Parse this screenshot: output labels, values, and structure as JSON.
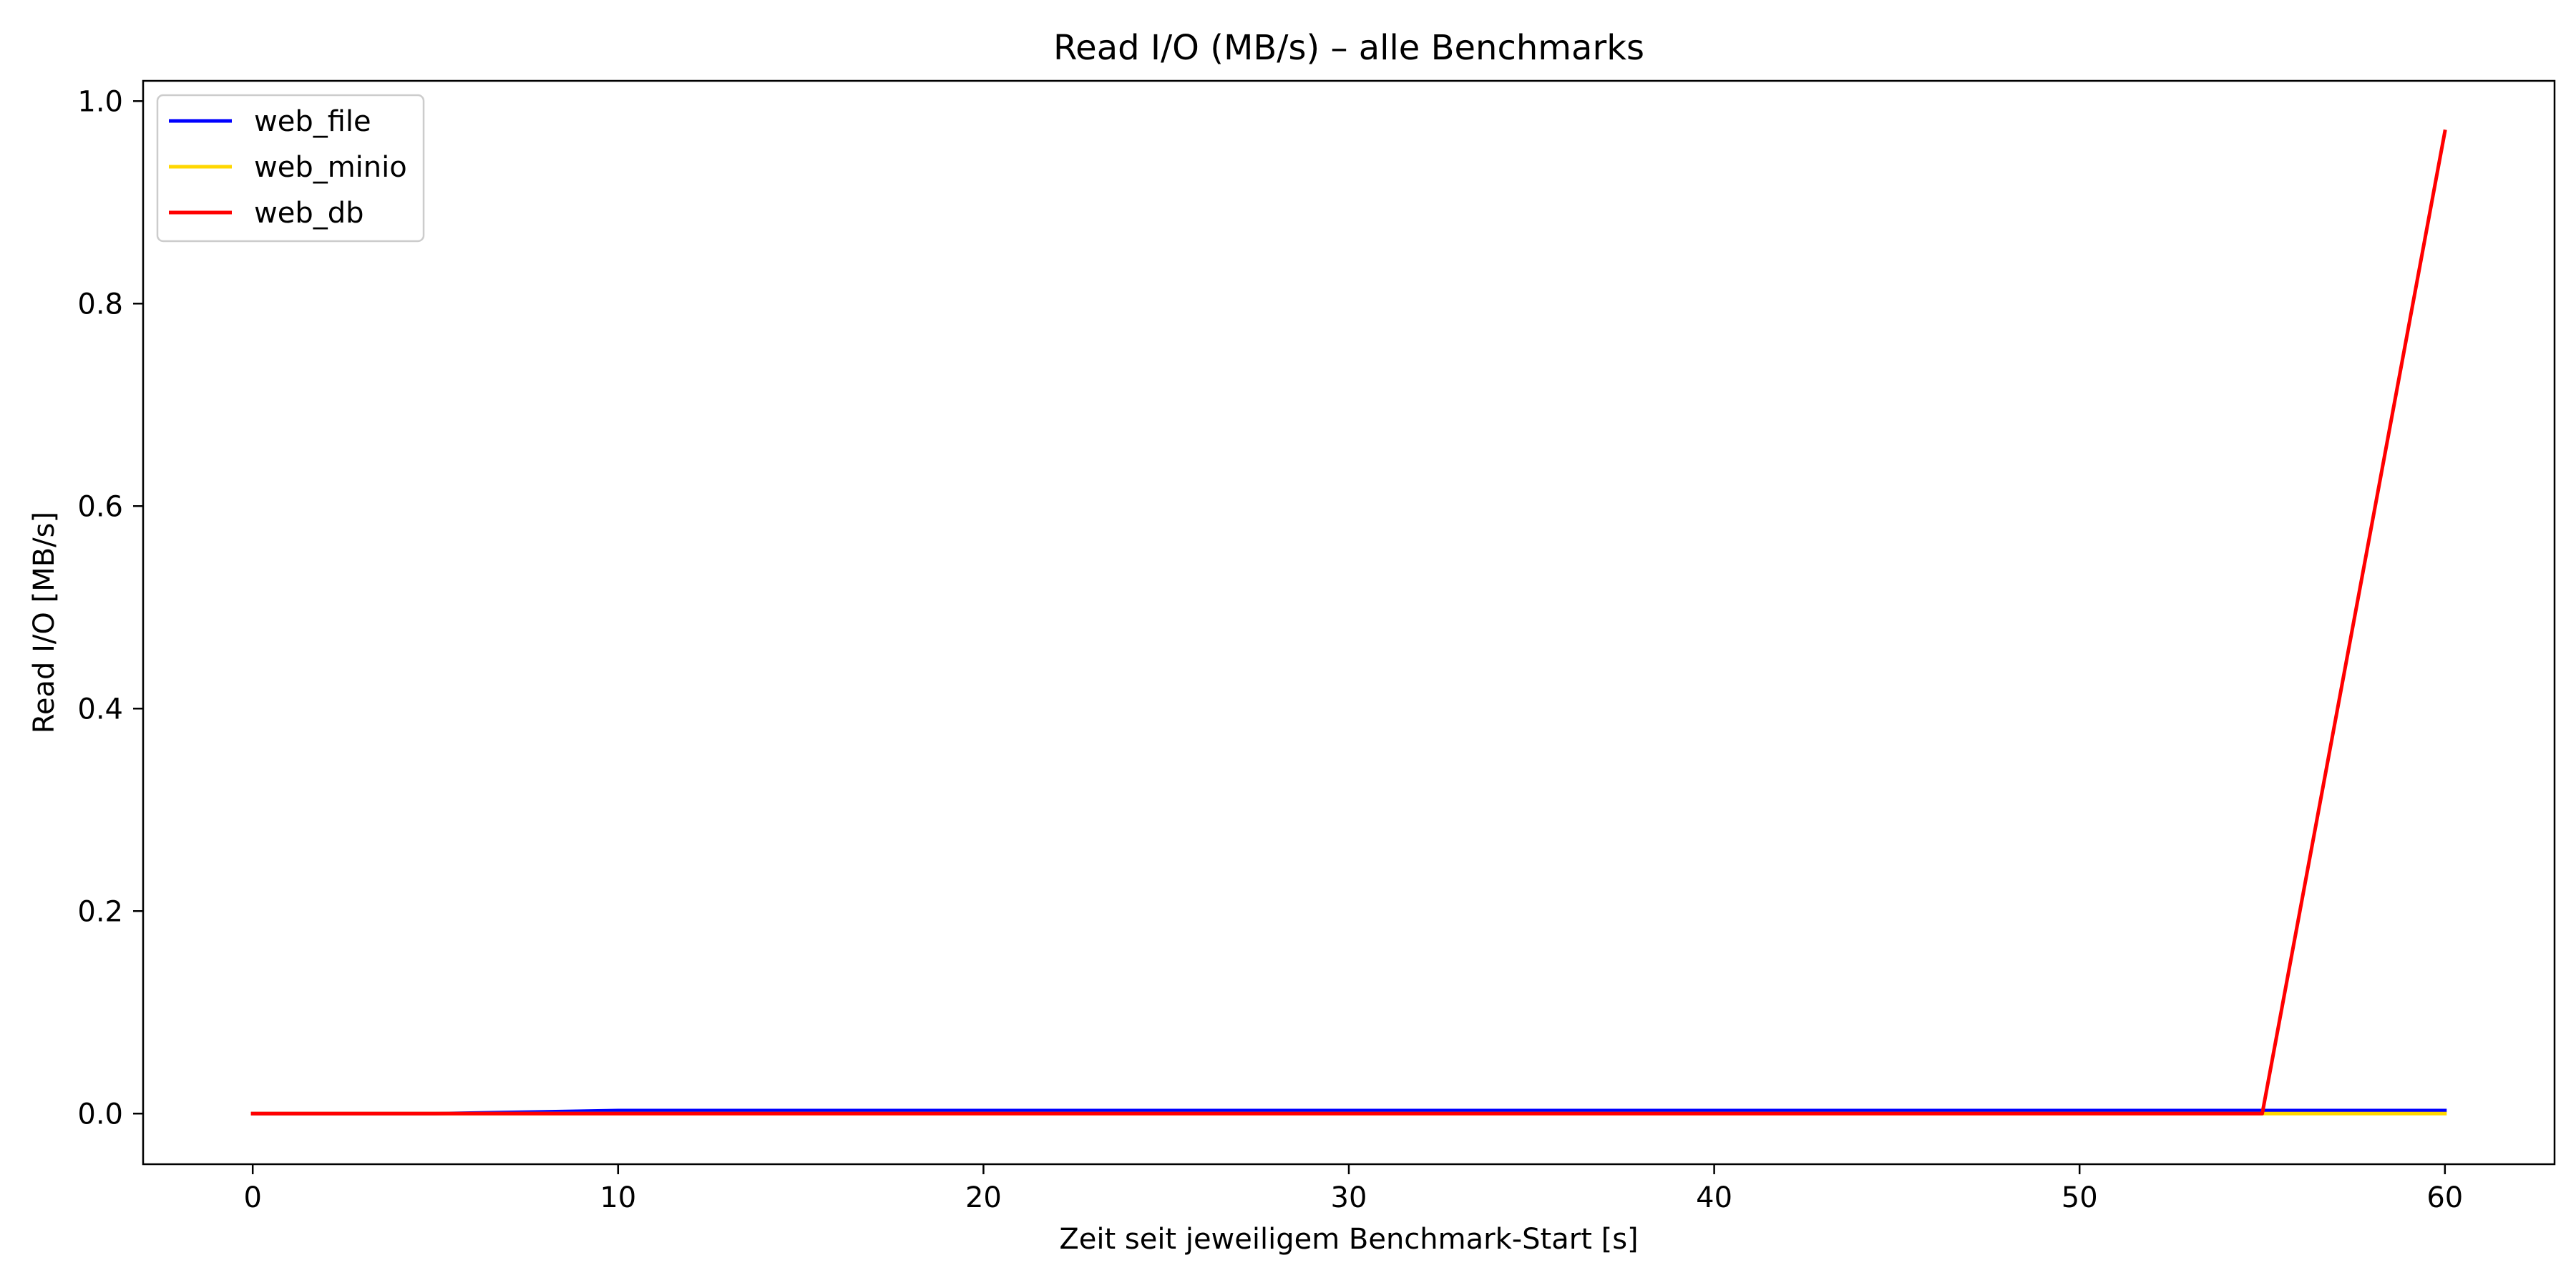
{
  "chart_data": {
    "type": "line",
    "title": "Read I/O (MB/s) – alle Benchmarks",
    "xlabel": "Zeit seit jeweiligem Benchmark-Start [s]",
    "ylabel": "Read I/O [MB/s]",
    "xlim": [
      -3,
      63
    ],
    "ylim": [
      -0.05,
      1.02
    ],
    "xticks": [
      0,
      10,
      20,
      30,
      40,
      50,
      60
    ],
    "xtick_labels": [
      "0",
      "10",
      "20",
      "30",
      "40",
      "50",
      "60"
    ],
    "yticks": [
      0.0,
      0.2,
      0.4,
      0.6,
      0.8,
      1.0
    ],
    "ytick_labels": [
      "0.0",
      "0.2",
      "0.4",
      "0.6",
      "0.8",
      "1.0"
    ],
    "grid": false,
    "legend_position": "top-left",
    "series": [
      {
        "name": "web_file",
        "color": "#0000ff",
        "x": [
          0,
          5,
          10,
          15,
          20,
          25,
          30,
          35,
          40,
          45,
          50,
          55,
          60
        ],
        "y": [
          0.0,
          0.0,
          0.003,
          0.003,
          0.003,
          0.003,
          0.003,
          0.003,
          0.003,
          0.003,
          0.003,
          0.003,
          0.003
        ]
      },
      {
        "name": "web_minio",
        "color": "#ffd700",
        "x": [
          0,
          5,
          10,
          15,
          20,
          25,
          30,
          35,
          40,
          45,
          50,
          55,
          60
        ],
        "y": [
          0.0,
          0.0,
          0.0,
          0.0,
          0.0,
          0.0,
          0.0,
          0.0,
          0.0,
          0.0,
          0.0,
          0.0,
          0.0
        ]
      },
      {
        "name": "web_db",
        "color": "#ff0000",
        "x": [
          0,
          5,
          10,
          15,
          20,
          25,
          30,
          35,
          40,
          45,
          50,
          55,
          60
        ],
        "y": [
          0.0,
          0.0,
          0.0,
          0.0,
          0.0,
          0.0,
          0.0,
          0.0,
          0.0,
          0.0,
          0.0,
          0.0,
          0.97
        ]
      }
    ]
  }
}
